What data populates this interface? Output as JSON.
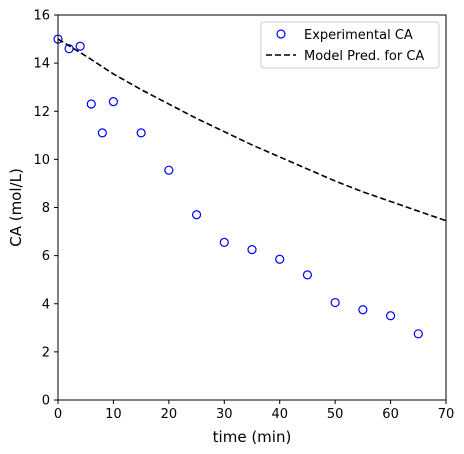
{
  "chart_data": {
    "type": "scatter",
    "xlabel": "time (min)",
    "ylabel": "CA (mol/L)",
    "xlim": [
      0,
      70
    ],
    "ylim": [
      0,
      16
    ],
    "xticks": [
      0,
      10,
      20,
      30,
      40,
      50,
      60,
      70
    ],
    "yticks": [
      0,
      2,
      4,
      6,
      8,
      10,
      12,
      14,
      16
    ],
    "grid": false,
    "legend_position": "top-right",
    "series": [
      {
        "name": "Experimental CA",
        "kind": "scatter",
        "marker": "open-circle",
        "color": "#0000ff",
        "x": [
          0,
          2,
          4,
          6,
          8,
          10,
          15,
          20,
          25,
          30,
          35,
          40,
          45,
          50,
          55,
          60,
          65
        ],
        "y": [
          15.0,
          14.6,
          14.7,
          12.3,
          11.1,
          12.4,
          11.1,
          9.55,
          7.7,
          6.55,
          6.25,
          5.85,
          5.2,
          4.05,
          3.75,
          3.5,
          2.75
        ]
      },
      {
        "name": "Model Pred. for CA",
        "kind": "line",
        "line_style": "dashed",
        "color": "#000000",
        "x": [
          0,
          5,
          10,
          15,
          20,
          25,
          30,
          35,
          40,
          45,
          50,
          55,
          60,
          65,
          70
        ],
        "y": [
          15.0,
          14.3,
          13.55,
          12.9,
          12.3,
          11.7,
          11.15,
          10.6,
          10.1,
          9.6,
          9.1,
          8.65,
          8.25,
          7.85,
          7.45
        ]
      }
    ]
  }
}
